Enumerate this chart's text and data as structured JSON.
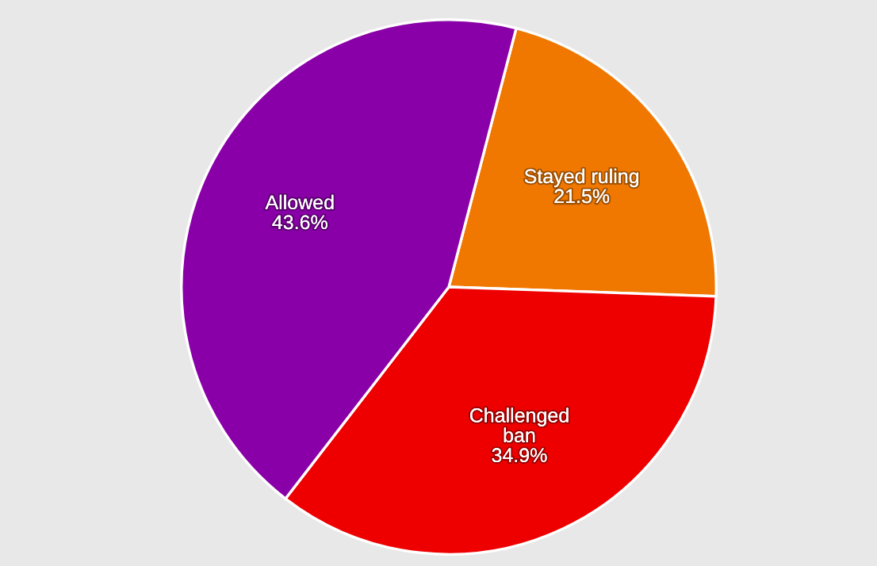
{
  "chart_data": {
    "type": "pie",
    "categories": [
      "Stayed ruling",
      "Challenged\nban",
      "Allowed"
    ],
    "values": [
      21.5,
      34.9,
      43.6
    ],
    "colors": [
      "#f07800",
      "#ee0000",
      "#8a00a8"
    ],
    "value_labels": [
      "21.5%",
      "34.9%",
      "43.6%"
    ]
  }
}
